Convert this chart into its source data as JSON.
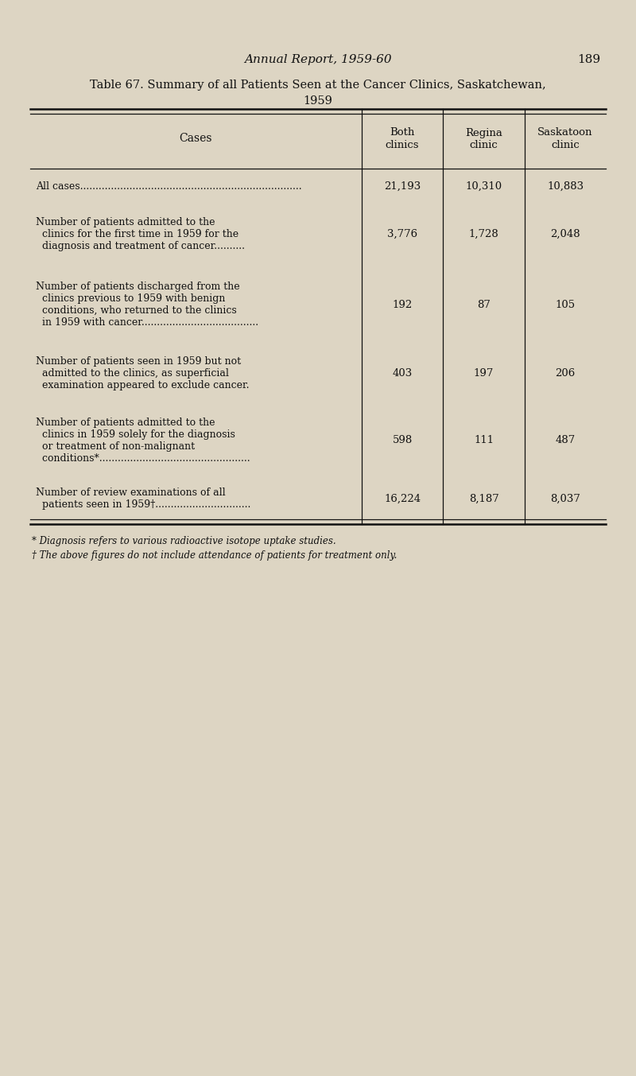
{
  "page_header": "Annual Report, 1959-60",
  "page_number": "189",
  "title_line1": "Table 67. Summary of all Patients Seen at the Cancer Clinics, Saskatchewan,",
  "title_line2": "1959",
  "col_headers": [
    "Cases",
    "Both\nclinics",
    "Regina\nclinic",
    "Saskatoon\nclinic"
  ],
  "rows": [
    {
      "label": "All cases........................................................................",
      "label_indent": false,
      "values": [
        "21,193",
        "10,310",
        "10,883"
      ]
    },
    {
      "label": "Number of patients admitted to the\n  clinics for the first time in 1959 for the\n  diagnosis and treatment of cancer..........",
      "label_indent": true,
      "values": [
        "3,776",
        "1,728",
        "2,048"
      ]
    },
    {
      "label": "Number of patients discharged from the\n  clinics previous to 1959 with benign\n  conditions, who returned to the clinics\n  in 1959 with cancer......................................",
      "label_indent": true,
      "values": [
        "192",
        "87",
        "105"
      ]
    },
    {
      "label": "Number of patients seen in 1959 but not\n  admitted to the clinics, as superficial\n  examination appeared to exclude cancer.",
      "label_indent": true,
      "values": [
        "403",
        "197",
        "206"
      ]
    },
    {
      "label": "Number of patients admitted to the\n  clinics in 1959 solely for the diagnosis\n  or treatment of non-malignant\n  conditions*.................................................",
      "label_indent": true,
      "values": [
        "598",
        "111",
        "487"
      ]
    },
    {
      "label": "Number of review examinations of all\n  patients seen in 1959†...............................",
      "label_indent": true,
      "values": [
        "16,224",
        "8,187",
        "8,037"
      ]
    }
  ],
  "footnote1": "* Diagnosis refers to various radioactive isotope uptake studies.",
  "footnote2": "† The above figures do not include attendance of patients for treatment only.",
  "bg_color": "#ddd5c3",
  "text_color": "#111111",
  "table_line_color": "#111111"
}
